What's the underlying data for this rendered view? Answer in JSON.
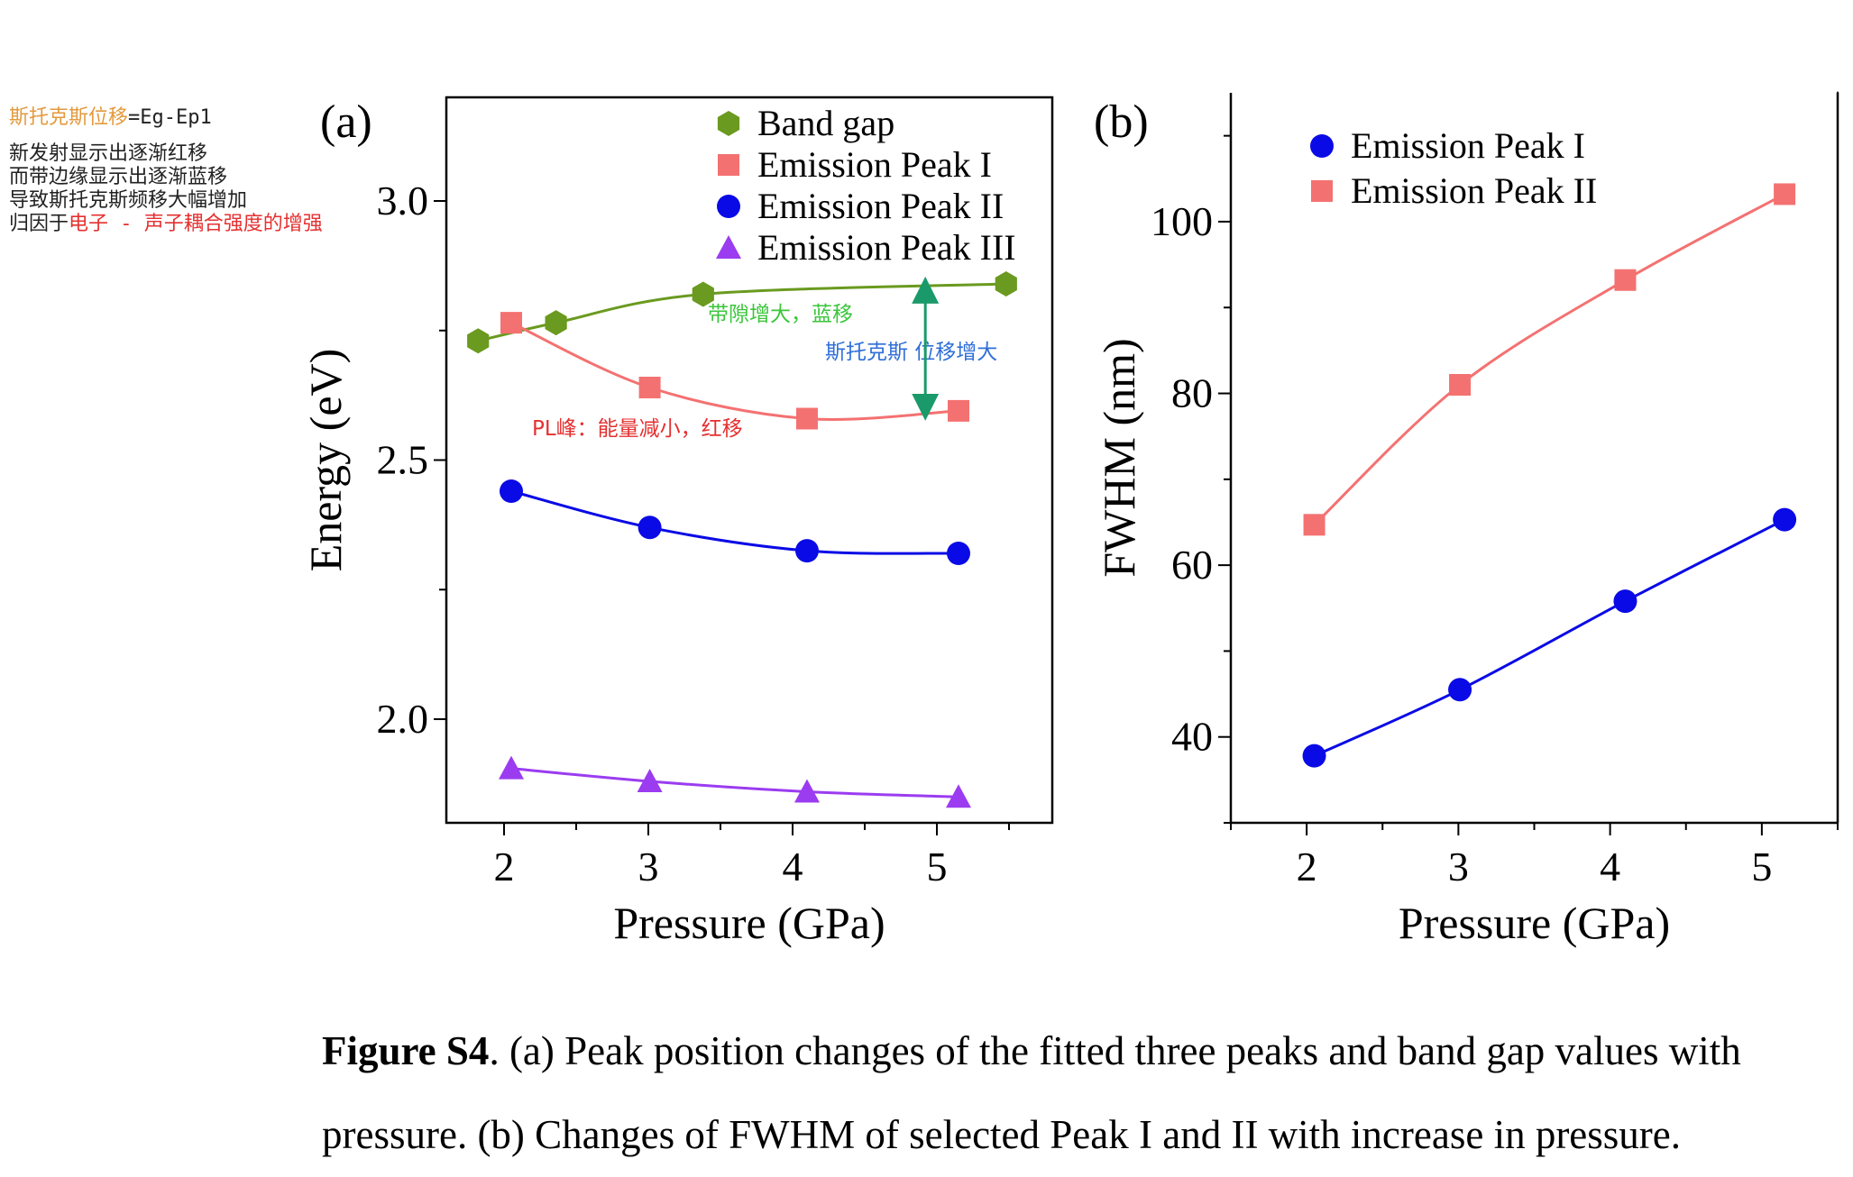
{
  "notes": {
    "line1_orange": "斯托克斯位移",
    "line1_rest": "=Eg-Ep1",
    "line2": "新发射显示出逐渐红移",
    "line3": "而带边缘显示出逐渐蓝移",
    "line4": "导致斯托克斯频移大幅增加",
    "line5_prefix": "归因于",
    "line5_red": "电子 - 声子耦合强度的增强"
  },
  "colors": {
    "band_gap": "#6a9a1f",
    "peak1": "#f47171",
    "peak2": "#0a0ae6",
    "peak3": "#9b3cf0",
    "anno_green": "#3bc63b",
    "anno_blue": "#2f6fd8",
    "anno_red": "#e53030",
    "arrow": "#1a9a6a"
  },
  "chart_data": [
    {
      "type": "scatter",
      "panel_label": "(a)",
      "xlabel": "Pressure (GPa)",
      "ylabel": "Energy (eV)",
      "xlim": [
        1.6,
        5.8
      ],
      "ylim": [
        1.8,
        3.2
      ],
      "xticks": [
        "2",
        "3",
        "4",
        "5"
      ],
      "yticks": [
        "2.0",
        "2.5",
        "3.0"
      ],
      "legend_position": "top-right",
      "series": [
        {
          "name": "Band gap",
          "marker": "hexagon",
          "color": "#6a9a1f",
          "x": [
            1.82,
            2.36,
            3.38,
            5.48
          ],
          "y": [
            2.73,
            2.765,
            2.82,
            2.84
          ]
        },
        {
          "name": "Emission Peak I",
          "marker": "square",
          "color": "#f47171",
          "x": [
            2.05,
            3.01,
            4.1,
            5.15
          ],
          "y": [
            2.765,
            2.64,
            2.58,
            2.595
          ]
        },
        {
          "name": "Emission Peak II",
          "marker": "circle",
          "color": "#0a0ae6",
          "x": [
            2.05,
            3.01,
            4.1,
            5.15
          ],
          "y": [
            2.44,
            2.37,
            2.325,
            2.32
          ]
        },
        {
          "name": "Emission Peak III",
          "marker": "triangle",
          "color": "#9b3cf0",
          "x": [
            2.05,
            3.01,
            4.1,
            5.15
          ],
          "y": [
            1.905,
            1.88,
            1.86,
            1.85
          ]
        }
      ],
      "annotations": {
        "band_gap_note": "带隙增大，蓝移",
        "stokes_note": "斯托克斯 位移增大",
        "pl_note": "PL峰：能量减小，红移"
      }
    },
    {
      "type": "scatter",
      "panel_label": "(b)",
      "xlabel": "Pressure (GPa)",
      "ylabel": "FWHM (nm)",
      "xlim": [
        1.5,
        5.5
      ],
      "ylim": [
        30,
        115
      ],
      "xticks": [
        "2",
        "3",
        "4",
        "5"
      ],
      "yticks": [
        "40",
        "60",
        "80",
        "100"
      ],
      "legend_position": "top-left",
      "series": [
        {
          "name": "Emission Peak I",
          "marker": "circle",
          "color": "#0a0ae6",
          "x": [
            2.05,
            3.01,
            4.1,
            5.15
          ],
          "y": [
            37.8,
            45.5,
            55.8,
            65.3
          ]
        },
        {
          "name": "Emission Peak II",
          "marker": "square",
          "color": "#f47171",
          "x": [
            2.05,
            3.01,
            4.1,
            5.15
          ],
          "y": [
            64.7,
            81.0,
            93.2,
            103.2
          ]
        }
      ]
    }
  ],
  "caption": {
    "label": "Figure S4",
    "text": ". (a) Peak position changes of the fitted three peaks and band gap values with pressure. (b) Changes of FWHM of selected Peak I and II with increase in pressure."
  }
}
